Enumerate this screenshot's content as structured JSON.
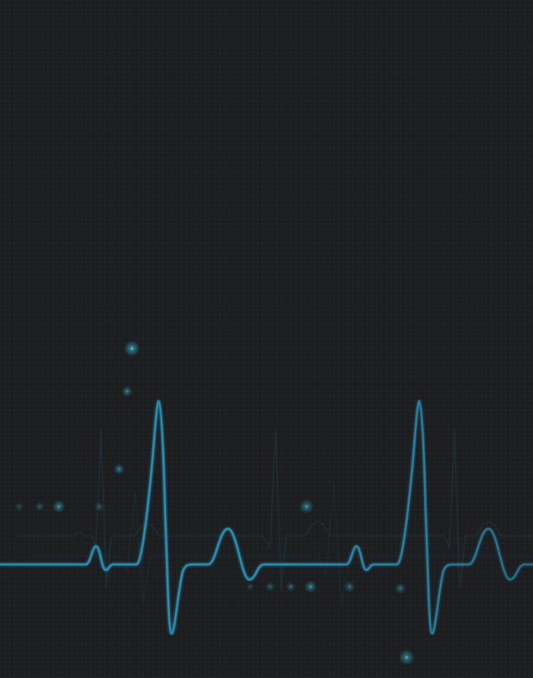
{
  "scene": {
    "background_color": "#1c1d1f",
    "grid_color": "#25272a",
    "trace_color": "#2c8db2",
    "glow_color": "#37b7d6",
    "trace_icon": "heartbeat-ecg-icon"
  }
}
